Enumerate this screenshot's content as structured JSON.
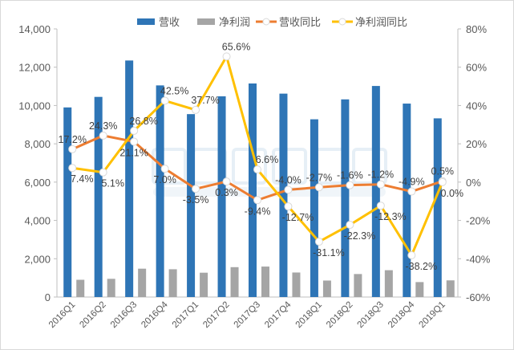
{
  "watermark": "中国闪存市场 ChinaFlashMarket.com",
  "chart_data": {
    "type": "bar+line",
    "categories": [
      "2016Q1",
      "2016Q2",
      "2016Q3",
      "2016Q4",
      "2017Q1",
      "2017Q2",
      "2017Q3",
      "2017Q4",
      "2018Q1",
      "2018Q2",
      "2018Q3",
      "2018Q4",
      "2019Q1"
    ],
    "left_axis": {
      "ylim": [
        0,
        14000
      ],
      "ticks": [
        "0",
        "2,000",
        "4,000",
        "6,000",
        "8,000",
        "10,000",
        "12,000",
        "14,000"
      ]
    },
    "right_axis": {
      "ylim": [
        -60,
        80
      ],
      "ticks": [
        "-60%",
        "-40%",
        "-20%",
        "0%",
        "20%",
        "40%",
        "60%",
        "80%"
      ]
    },
    "legend_position": "top",
    "series": [
      {
        "name": "营收",
        "type": "bar",
        "axis": "left",
        "color": "#2e75b6",
        "values": [
          9900,
          10450,
          12350,
          11050,
          9550,
          10480,
          11150,
          10620,
          9280,
          10320,
          11020,
          10100,
          9330
        ]
      },
      {
        "name": "净利润",
        "type": "bar",
        "axis": "left",
        "color": "#a5a5a5",
        "values": [
          900,
          950,
          1480,
          1450,
          1270,
          1560,
          1590,
          1280,
          860,
          1200,
          1400,
          780,
          870
        ]
      },
      {
        "name": "营收同比",
        "type": "line",
        "axis": "right",
        "color": "#ed7d31",
        "values": [
          17.2,
          24.3,
          21.1,
          7.0,
          -3.5,
          0.3,
          -9.4,
          -4.0,
          -2.7,
          -1.6,
          -1.2,
          -4.9,
          0.5
        ],
        "labels": [
          "17.2%",
          "24.3%",
          "21.1%",
          "7.0%",
          "-3.5%",
          "0.3%",
          "-9.4%",
          "-4.0%",
          "-2.7%",
          "-1.6%",
          "-1.2%",
          "-4.9%",
          "0.5%"
        ]
      },
      {
        "name": "净利润同比",
        "type": "line",
        "axis": "right",
        "color": "#ffc000",
        "values": [
          7.4,
          5.1,
          26.8,
          42.5,
          37.7,
          65.6,
          6.6,
          -12.7,
          -31.1,
          -22.3,
          -12.3,
          -38.2,
          0.0
        ],
        "labels": [
          "7.4%",
          "5.1%",
          "26.8%",
          "42.5%",
          "37.7%",
          "65.6%",
          "6.6%",
          "-12.7%",
          "-31.1%",
          "-22.3%",
          "-12.3%",
          "-38.2%",
          "0.0%"
        ]
      }
    ]
  }
}
